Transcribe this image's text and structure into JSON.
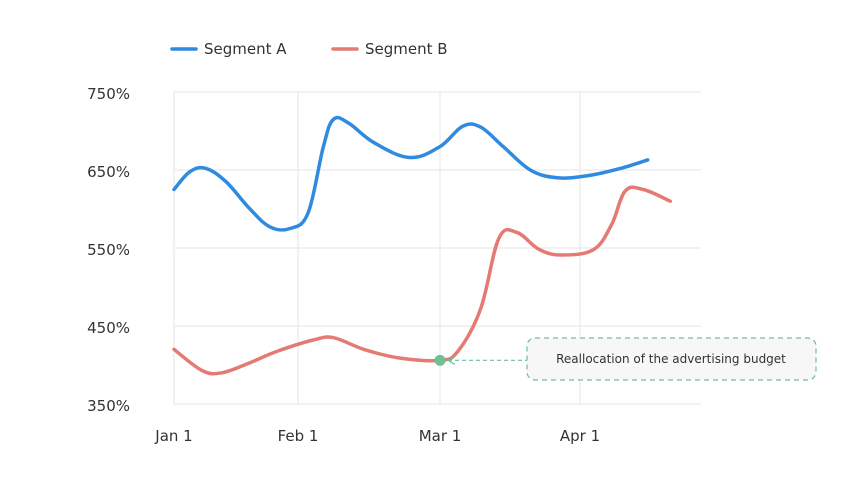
{
  "chart_data": {
    "type": "line",
    "x_ticks": [
      "Jan 1",
      "Feb 1",
      "Mar 1",
      "Apr 1"
    ],
    "y_ticks": [
      "750%",
      "650%",
      "550%",
      "450%",
      "350%"
    ],
    "ylim": [
      350,
      750
    ],
    "legend_position": "top-left",
    "grid": "vertical and horizontal",
    "series": [
      {
        "name": "Segment A",
        "color": "#2f8be0",
        "points": [
          [
            "2023-01-01",
            625
          ],
          [
            "2023-01-05",
            648
          ],
          [
            "2023-01-09",
            652
          ],
          [
            "2023-01-14",
            635
          ],
          [
            "2023-01-20",
            600
          ],
          [
            "2023-01-25",
            577
          ],
          [
            "2023-01-30",
            575
          ],
          [
            "2023-02-03",
            595
          ],
          [
            "2023-02-06",
            680
          ],
          [
            "2023-02-08",
            715
          ],
          [
            "2023-02-11",
            710
          ],
          [
            "2023-02-16",
            685
          ],
          [
            "2023-02-23",
            666
          ],
          [
            "2023-03-01",
            680
          ],
          [
            "2023-03-06",
            706
          ],
          [
            "2023-03-10",
            705
          ],
          [
            "2023-03-15",
            680
          ],
          [
            "2023-03-21",
            650
          ],
          [
            "2023-03-27",
            640
          ],
          [
            "2023-04-03",
            643
          ],
          [
            "2023-04-10",
            652
          ],
          [
            "2023-04-16",
            663
          ]
        ]
      },
      {
        "name": "Segment B",
        "color": "#e47a72",
        "points": [
          [
            "2023-01-01",
            420
          ],
          [
            "2023-01-08",
            393
          ],
          [
            "2023-01-13",
            390
          ],
          [
            "2023-01-20",
            403
          ],
          [
            "2023-01-27",
            418
          ],
          [
            "2023-02-04",
            432
          ],
          [
            "2023-02-08",
            435
          ],
          [
            "2023-02-14",
            420
          ],
          [
            "2023-02-21",
            409
          ],
          [
            "2023-03-01",
            406
          ],
          [
            "2023-03-05",
            418
          ],
          [
            "2023-03-10",
            472
          ],
          [
            "2023-03-14",
            562
          ],
          [
            "2023-03-18",
            570
          ],
          [
            "2023-03-23",
            548
          ],
          [
            "2023-03-28",
            541
          ],
          [
            "2023-04-04",
            548
          ],
          [
            "2023-04-08",
            580
          ],
          [
            "2023-04-11",
            623
          ],
          [
            "2023-04-15",
            625
          ],
          [
            "2023-04-21",
            610
          ]
        ]
      }
    ],
    "annotation": {
      "text": "Reallocation of the advertising budget",
      "x": "2023-03-01",
      "y": 406,
      "series": "Segment B",
      "marker_color": "#6fbf97"
    }
  }
}
